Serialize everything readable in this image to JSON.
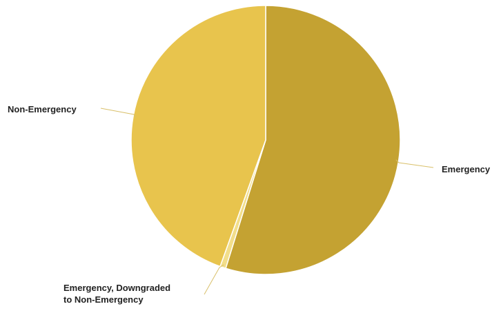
{
  "chart_data": {
    "type": "pie",
    "title": "",
    "slices": [
      {
        "label": "Emergency",
        "value": 54.8,
        "color": "#C4A232",
        "label_lines": [
          "Emergency"
        ]
      },
      {
        "label": "Emergency, Downgraded to Non-Emergency",
        "value": 0.7,
        "color": "#F2DE8A",
        "label_lines": [
          "Emergency, Downgraded",
          "to Non-Emergency"
        ]
      },
      {
        "label": "Non-Emergency",
        "value": 44.5,
        "color": "#E8C44D",
        "label_lines": [
          "Non-Emergency"
        ]
      }
    ],
    "start_angle_deg": 0,
    "direction": "clockwise",
    "slice_border_color": "#FFFFFF",
    "leader_line_color": "#D9C06A",
    "labels": "outside with leader lines",
    "legend": "none"
  }
}
